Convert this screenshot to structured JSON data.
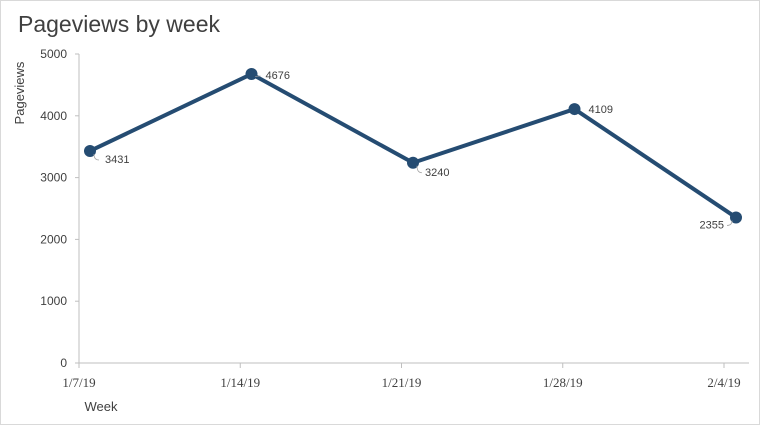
{
  "chart_data": {
    "type": "line",
    "title": "Pageviews by week",
    "xlabel": "Week",
    "ylabel": "Pageviews",
    "categories": [
      "1/7/19",
      "1/14/19",
      "1/21/19",
      "1/28/19",
      "2/4/19"
    ],
    "series": [
      {
        "values": [
          3431,
          4676,
          3240,
          4109,
          2355
        ]
      }
    ],
    "data_labels": [
      "3431",
      "4676",
      "3240",
      "4109",
      "2355"
    ],
    "yticks": [
      0,
      1000,
      2000,
      3000,
      4000,
      5000
    ],
    "ylim": [
      0,
      5000
    ],
    "grid": false,
    "legend": "none",
    "colors": {
      "series": "#254C72",
      "axis": "#bfbfbf",
      "text": "#404040"
    }
  }
}
